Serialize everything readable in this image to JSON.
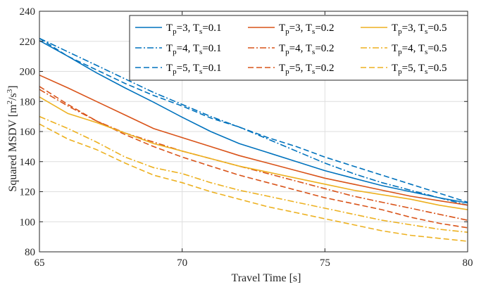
{
  "chart_data": {
    "type": "line",
    "xlabel": "Travel Time [s]",
    "ylabel_main": "Squared MSDV [m",
    "ylabel_sup1": "2",
    "ylabel_mid": "/s",
    "ylabel_sup2": "3",
    "ylabel_end": "]",
    "xlim": [
      65,
      80
    ],
    "ylim": [
      80,
      240
    ],
    "xticks": [
      65,
      70,
      75,
      80
    ],
    "yticks": [
      80,
      100,
      120,
      140,
      160,
      180,
      200,
      220,
      240
    ],
    "grid": true,
    "legend_position": "top-right",
    "colors": {
      "blue": "#0072bd",
      "orange": "#d95319",
      "yellow": "#edb120"
    },
    "series": [
      {
        "name": {
          "p": "3",
          "s": "0.1"
        },
        "color": "#0072bd",
        "dash": "solid",
        "x": [
          65,
          66,
          67,
          68,
          69,
          70,
          71,
          72,
          73,
          74,
          75,
          76,
          77,
          78,
          79,
          80
        ],
        "y": [
          220.5,
          210,
          199,
          189,
          179.5,
          169.5,
          160,
          152,
          146,
          140,
          134,
          129,
          124,
          120,
          116,
          112.5
        ]
      },
      {
        "name": {
          "p": "4",
          "s": "0.1"
        },
        "color": "#0072bd",
        "dash": "dashdot",
        "x": [
          65,
          66,
          67,
          68,
          69,
          70,
          71,
          72,
          73,
          74,
          75,
          76,
          77,
          78,
          79,
          80
        ],
        "y": [
          222,
          213,
          204,
          195,
          186,
          178,
          170,
          163,
          155,
          147,
          139,
          132,
          126,
          121,
          116,
          111
        ]
      },
      {
        "name": {
          "p": "5",
          "s": "0.1"
        },
        "color": "#0072bd",
        "dash": "dashed",
        "x": [
          65,
          66,
          67,
          68,
          69,
          70,
          71,
          72,
          73,
          74,
          75,
          76,
          77,
          78,
          79,
          80
        ],
        "y": [
          222,
          210,
          201,
          192,
          184,
          177,
          169,
          163,
          156,
          150,
          143,
          137,
          131,
          125,
          119,
          113
        ]
      },
      {
        "name": {
          "p": "3",
          "s": "0.2"
        },
        "color": "#d95319",
        "dash": "solid",
        "x": [
          65,
          66,
          67,
          68,
          69,
          70,
          71,
          72,
          73,
          74,
          75,
          76,
          77,
          78,
          79,
          80
        ],
        "y": [
          197.5,
          189,
          180,
          171,
          162,
          156,
          150,
          144,
          139,
          134,
          129,
          125,
          121,
          117,
          114,
          111
        ]
      },
      {
        "name": {
          "p": "4",
          "s": "0.2"
        },
        "color": "#d95319",
        "dash": "dashdot",
        "x": [
          65,
          66,
          67,
          68,
          69,
          70,
          71,
          72,
          73,
          74,
          75,
          76,
          77,
          78,
          79,
          80
        ],
        "y": [
          188,
          177,
          167,
          159,
          153,
          147,
          142,
          137,
          132,
          127,
          122,
          117,
          113,
          109,
          105,
          101
        ]
      },
      {
        "name": {
          "p": "5",
          "s": "0.2"
        },
        "color": "#d95319",
        "dash": "dashed",
        "x": [
          65,
          66,
          67,
          68,
          69,
          70,
          71,
          72,
          73,
          74,
          75,
          76,
          77,
          78,
          79,
          80
        ],
        "y": [
          190,
          178,
          167,
          158,
          150,
          143,
          137,
          131,
          126,
          121,
          116,
          112,
          108,
          103,
          99,
          96
        ]
      },
      {
        "name": {
          "p": "3",
          "s": "0.5"
        },
        "color": "#edb120",
        "dash": "solid",
        "x": [
          65,
          66,
          67,
          68,
          69,
          70,
          71,
          72,
          73,
          74,
          75,
          76,
          77,
          78,
          79,
          80
        ],
        "y": [
          183,
          172,
          166,
          159,
          152,
          147,
          142,
          137,
          133,
          129,
          125,
          121,
          118,
          115,
          111,
          108
        ]
      },
      {
        "name": {
          "p": "4",
          "s": "0.5"
        },
        "color": "#edb120",
        "dash": "dashdot",
        "x": [
          65,
          66,
          67,
          68,
          69,
          70,
          71,
          72,
          73,
          74,
          75,
          76,
          77,
          78,
          79,
          80
        ],
        "y": [
          170,
          162,
          153,
          143,
          136,
          132,
          126,
          121,
          117,
          113,
          109,
          105,
          101,
          98,
          95,
          93
        ]
      },
      {
        "name": {
          "p": "5",
          "s": "0.5"
        },
        "color": "#edb120",
        "dash": "dashed",
        "x": [
          65,
          66,
          67,
          68,
          69,
          70,
          71,
          72,
          73,
          74,
          75,
          76,
          77,
          78,
          79,
          80
        ],
        "y": [
          165,
          155,
          148,
          139,
          131,
          126,
          120,
          115,
          110,
          106,
          102,
          98,
          94,
          91,
          89,
          87
        ]
      }
    ]
  }
}
